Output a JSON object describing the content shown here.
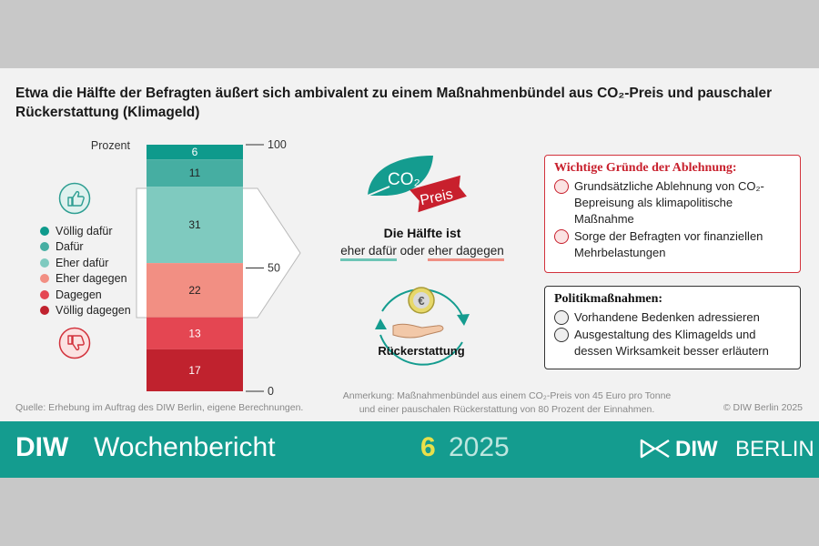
{
  "title": "Etwa die Hälfte der Befragten äußert sich ambivalent zu einem Maßnahmenbündel aus CO₂-Preis und pauschaler Rückerstattung (Klimageld)",
  "chart_data": {
    "type": "bar",
    "stacked": true,
    "ylabel": "Prozent",
    "ylim": [
      0,
      100
    ],
    "yticks": [
      0,
      50,
      100
    ],
    "series": [
      {
        "name": "Völlig dafür",
        "value": 6,
        "color": "#0e9a8c"
      },
      {
        "name": "Dafür",
        "value": 11,
        "color": "#46aea2"
      },
      {
        "name": "Eher dafür",
        "value": 31,
        "color": "#7fcabf"
      },
      {
        "name": "Eher dagegen",
        "value": 22,
        "color": "#f28f83"
      },
      {
        "name": "Dagegen",
        "value": 13,
        "color": "#e44652"
      },
      {
        "name": "Völlig dagegen",
        "value": 17,
        "color": "#c0222e"
      }
    ]
  },
  "icons": {
    "thumbs_up": "thumbs-up-icon",
    "thumbs_down": "thumbs-down-icon",
    "leaf": "co2-leaf-icon",
    "coin": "euro-coin-icon",
    "hand": "open-hand-icon"
  },
  "co2_icon": {
    "co2": "CO₂",
    "preis": "Preis"
  },
  "half": {
    "title": "Die Hälfte ist",
    "part1": "eher dafür",
    "oder": "oder",
    "part2": "eher dagegen"
  },
  "refund_label": "Rückerstattung",
  "reasons_box": {
    "title": "Wichtige Gründe der Ablehnung:",
    "items": [
      "Grundsätzliche Ablehnung von CO₂-Bepreisung als klimapolitische Maßnahme",
      "Sorge der Befragten vor finanziellen Mehrbelastungen"
    ]
  },
  "policy_box": {
    "title": "Politikmaßnahmen:",
    "items": [
      "Vorhandene Bedenken adressieren",
      "Ausgestaltung des Klimagelds und dessen Wirksamkeit besser erläutern"
    ]
  },
  "source": "Quelle: Erhebung im Auftrag des DIW Berlin, eigene Berechnungen.",
  "note_line1": "Anmerkung: Maßnahmenbündel aus einem CO₂-Preis von 45 Euro pro Tonne",
  "note_line2": "und einer pauschalen Rückerstattung von 80 Prozent der Einnahmen.",
  "copyright": "© DIW Berlin 2025",
  "footer": {
    "diw": "DIW",
    "wochenbericht": "Wochenbericht",
    "issue": "6",
    "year": "2025",
    "logo_diw": "DIW",
    "logo_berlin": "BERLIN"
  },
  "colors": {
    "teal": "#149c8f",
    "red": "#c8202d",
    "yellow": "#e8e04a"
  }
}
